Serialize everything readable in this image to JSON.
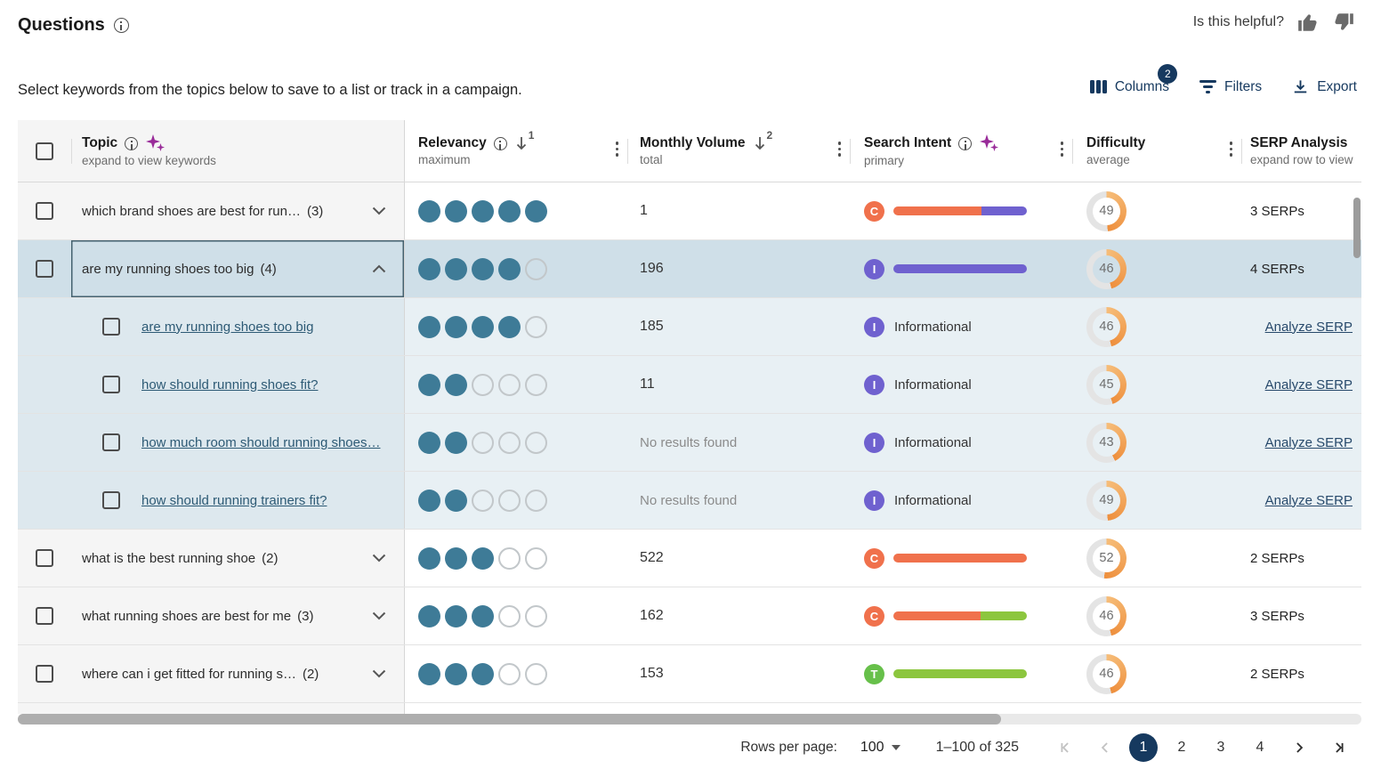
{
  "page": {
    "title": "Questions",
    "helpful_label": "Is this helpful?",
    "subtitle": "Select keywords from the topics below to save to a list or track in a campaign.",
    "toolbar": {
      "columns_label": "Columns",
      "columns_badge": "2",
      "filters_label": "Filters",
      "export_label": "Export"
    }
  },
  "colors": {
    "navy": "#16395f",
    "teal_dot": "#3e7b97",
    "intent_orange": "#f0714c",
    "intent_purple": "#6f61cf",
    "intent_green_bar": "#8cc63e",
    "intent_green_icon": "#67c04a",
    "difficulty_arc_start": "#f6bd79",
    "difficulty_arc_end": "#ee8f3d",
    "expanded_row_bg": "#cfdfe8",
    "child_row_bg": "#e8f0f4"
  },
  "table": {
    "columns": {
      "topic": {
        "label": "Topic",
        "sub": "expand to view keywords",
        "has_info": true,
        "has_sparkles": true
      },
      "relevancy": {
        "label": "Relevancy",
        "sub": "maximum",
        "has_info": true,
        "sort_rank": "1"
      },
      "volume": {
        "label": "Monthly Volume",
        "sub": "total",
        "sort_rank": "2"
      },
      "intent": {
        "label": "Search Intent",
        "sub": "primary",
        "has_info": true,
        "has_sparkles": true
      },
      "difficulty": {
        "label": "Difficulty",
        "sub": "average"
      },
      "serp": {
        "label": "SERP Analysis",
        "sub": "expand row to view"
      }
    },
    "rows": [
      {
        "type": "topic",
        "label": "which brand shoes are best for run…",
        "count": "(3)",
        "expanded": false,
        "relevancy": 5,
        "volume": "1",
        "intent": {
          "letter": "C",
          "color": "#f0714c",
          "bar": [
            {
              "color": "#f0714c",
              "pct": 66
            },
            {
              "color": "#6f61cf",
              "pct": 34
            }
          ]
        },
        "difficulty": 49,
        "serp": "3 SERPs"
      },
      {
        "type": "topic",
        "label": "are my running shoes too big",
        "count": "(4)",
        "expanded": true,
        "relevancy": 4,
        "volume": "196",
        "intent": {
          "letter": "I",
          "color": "#6f61cf",
          "bar": [
            {
              "color": "#6f61cf",
              "pct": 100
            }
          ]
        },
        "difficulty": 46,
        "serp": "4 SERPs"
      },
      {
        "type": "keyword",
        "label": "are my running shoes too big",
        "relevancy": 4,
        "volume": "185",
        "intent": {
          "letter": "I",
          "color": "#6f61cf",
          "name": "Informational"
        },
        "difficulty": 46,
        "serp_link": "Analyze SERP"
      },
      {
        "type": "keyword",
        "label": "how should running shoes fit?",
        "relevancy": 2,
        "volume": "11",
        "intent": {
          "letter": "I",
          "color": "#6f61cf",
          "name": "Informational"
        },
        "difficulty": 45,
        "serp_link": "Analyze SERP"
      },
      {
        "type": "keyword",
        "label": "how much room should running shoes…",
        "relevancy": 2,
        "volume": "No results found",
        "volume_muted": true,
        "intent": {
          "letter": "I",
          "color": "#6f61cf",
          "name": "Informational"
        },
        "difficulty": 43,
        "serp_link": "Analyze SERP"
      },
      {
        "type": "keyword",
        "label": "how should running trainers fit?",
        "relevancy": 2,
        "volume": "No results found",
        "volume_muted": true,
        "intent": {
          "letter": "I",
          "color": "#6f61cf",
          "name": "Informational"
        },
        "difficulty": 49,
        "serp_link": "Analyze SERP"
      },
      {
        "type": "topic",
        "label": "what is the best running shoe",
        "count": "(2)",
        "expanded": false,
        "relevancy": 3,
        "volume": "522",
        "intent": {
          "letter": "C",
          "color": "#f0714c",
          "bar": [
            {
              "color": "#f0714c",
              "pct": 100
            }
          ]
        },
        "difficulty": 52,
        "serp": "2 SERPs"
      },
      {
        "type": "topic",
        "label": "what running shoes are best for me",
        "count": "(3)",
        "expanded": false,
        "relevancy": 3,
        "volume": "162",
        "intent": {
          "letter": "C",
          "color": "#f0714c",
          "bar": [
            {
              "color": "#f0714c",
              "pct": 65
            },
            {
              "color": "#8cc63e",
              "pct": 35
            }
          ]
        },
        "difficulty": 46,
        "serp": "3 SERPs"
      },
      {
        "type": "topic",
        "label": "where can i get fitted for running s…",
        "count": "(2)",
        "expanded": false,
        "relevancy": 3,
        "volume": "153",
        "intent": {
          "letter": "T",
          "color": "#67c04a",
          "bar": [
            {
              "color": "#8cc63e",
              "pct": 100
            }
          ]
        },
        "difficulty": 46,
        "serp": "2 SERPs"
      }
    ]
  },
  "pagination": {
    "rows_per_page_label": "Rows per page:",
    "rows_per_page_value": "100",
    "range": "1–100 of 325",
    "pages": [
      "1",
      "2",
      "3",
      "4"
    ],
    "active_page": "1"
  }
}
